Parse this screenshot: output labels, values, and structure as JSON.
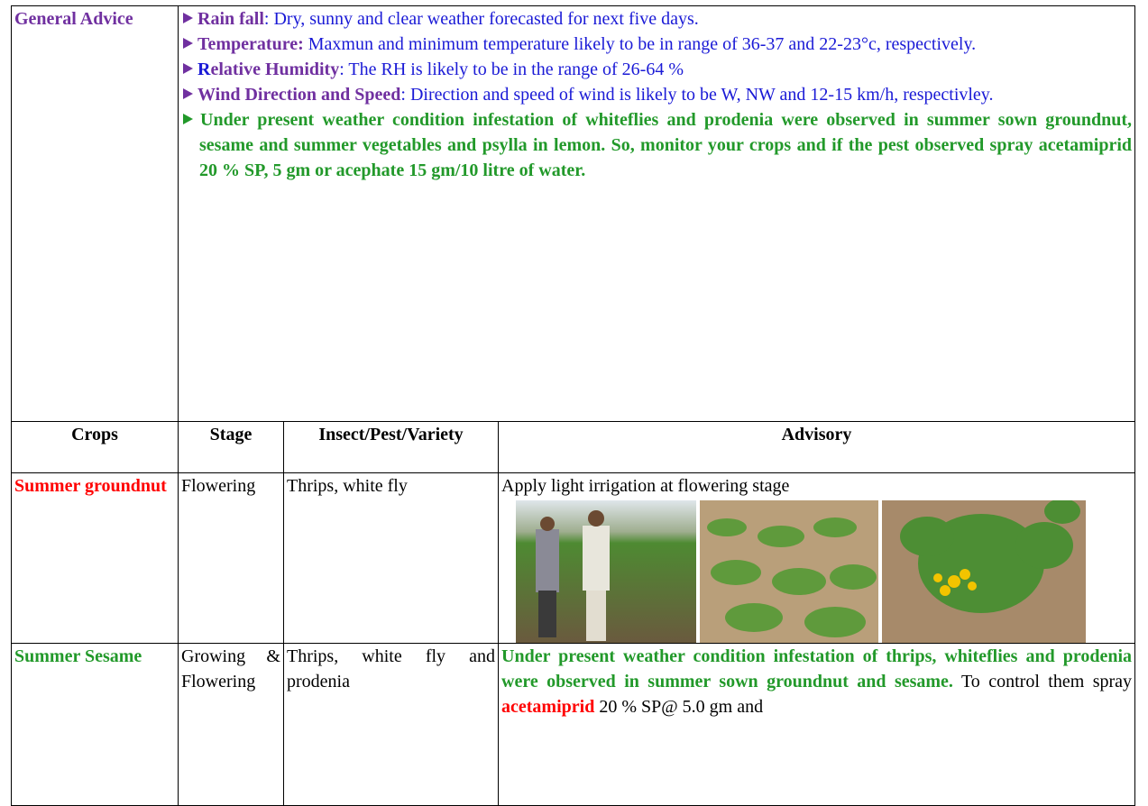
{
  "general_advice": {
    "label": "General Advice",
    "rain_fall": {
      "label": "Rain fall",
      "text": ": Dry, sunny and  clear weather forecasted for next five days."
    },
    "temperature": {
      "label": "Temperature:",
      "text": " Maxmun and minimum  temperature likely to be in range of  36-37 and 22-23°c, respectively."
    },
    "humidity": {
      "label_initial": "R",
      "label_rest": "elative Humidity",
      "text": ": The RH is likely to be in the range of 26-64 %"
    },
    "wind": {
      "label": "Wind Direction and Speed",
      "text": ": Direction and speed of wind is likely to be  W, NW and 12-15 km/h, respectivley."
    },
    "pest_note": "Under present weather condition infestation of whiteflies and prodenia were observed  in summer sown groundnut, sesame and summer vegetables and psylla in lemon. So, monitor your crops and if the pest observed spray acetamiprid 20 % SP,  5 gm or acephate 15 gm/10 litre of water."
  },
  "table": {
    "headers": [
      "Crops",
      "Stage",
      "Insect/Pest/Variety",
      "Advisory"
    ],
    "rows": [
      {
        "crop": "Summer groundnut",
        "stage": "Flowering",
        "pest": "Thrips, white fly",
        "advisory": "Apply light irrigation at flowering stage"
      },
      {
        "crop": "Summer Sesame",
        "stage": "Growing & Flowering",
        "pest": "Thrips, white fly and prodenia",
        "advisory": [
          "Under present weather condition  infestation of thrips, whiteflies and prodenia were observed  in summer sown groundnut and  sesame.",
          " To control them spray ",
          "acetamiprid",
          " 20 % SP@ 5.0 gm and"
        ]
      }
    ]
  }
}
